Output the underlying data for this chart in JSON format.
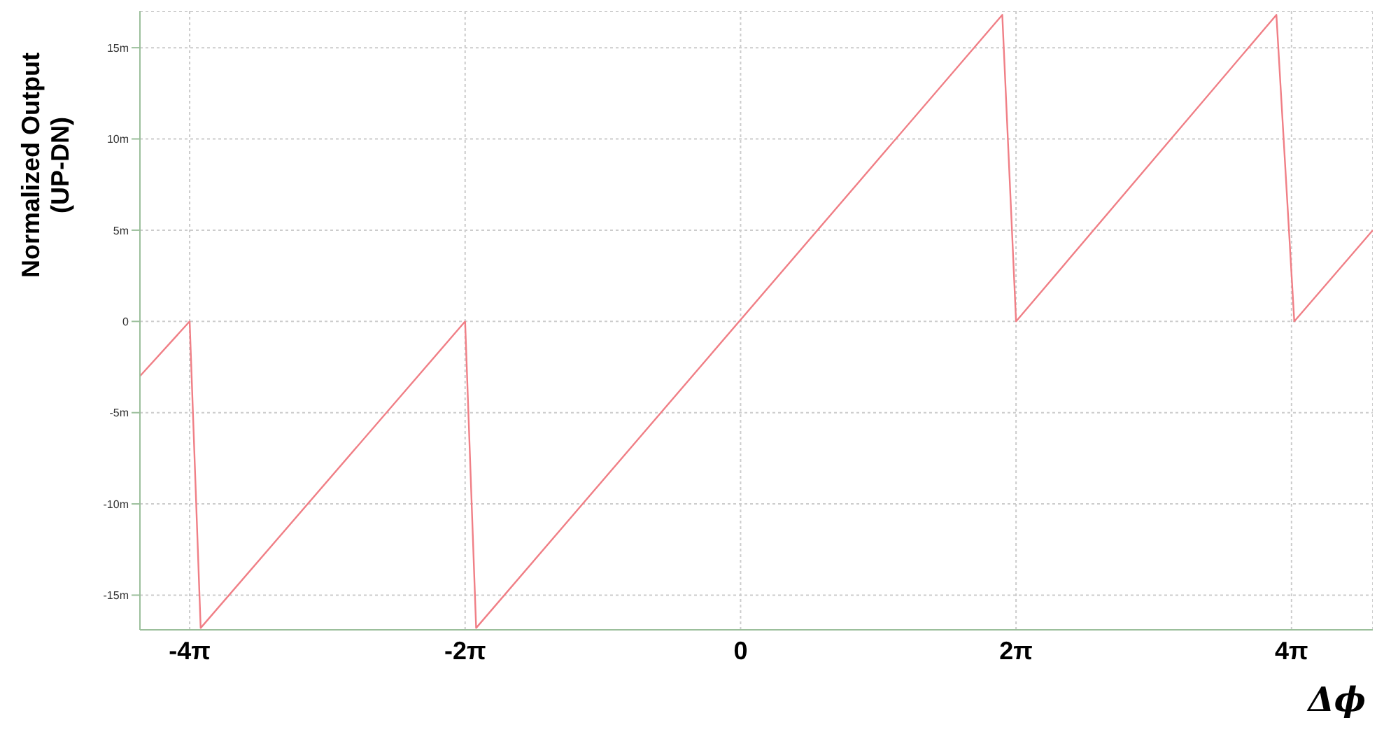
{
  "chart_data": {
    "type": "line",
    "xlabel": "Δϕ",
    "ylabel": "Normalized Output\n(UP-DN)",
    "series": [
      {
        "color": "#f07f86",
        "x": [
          -13.7,
          -12.566,
          -12.315,
          -6.283,
          -6.032,
          5.969,
          6.283,
          12.221,
          12.629,
          14.42
        ],
        "values": [
          -3.0,
          0,
          -16.8,
          0,
          -16.8,
          16.8,
          0,
          16.8,
          0,
          5.0
        ]
      }
    ],
    "xlim": [
      -13.7,
      14.42
    ],
    "xticks": [
      {
        "value": -12.566,
        "label": "-4π"
      },
      {
        "value": -6.283,
        "label": "-2π"
      },
      0,
      {
        "value": 6.283,
        "label": "2π"
      },
      {
        "value": 12.566,
        "label": "4π"
      }
    ],
    "ylim": [
      -16.9,
      17
    ],
    "yticks": [
      {
        "value": -15,
        "label": "-15m"
      },
      {
        "value": -10,
        "label": "-10m"
      },
      {
        "value": -5,
        "label": "-5m"
      },
      0,
      {
        "value": 5,
        "label": "5m"
      },
      {
        "value": 10,
        "label": "10m"
      },
      {
        "value": 15,
        "label": "15m"
      }
    ],
    "grid": true,
    "marker": "none",
    "line_style": "solid"
  }
}
